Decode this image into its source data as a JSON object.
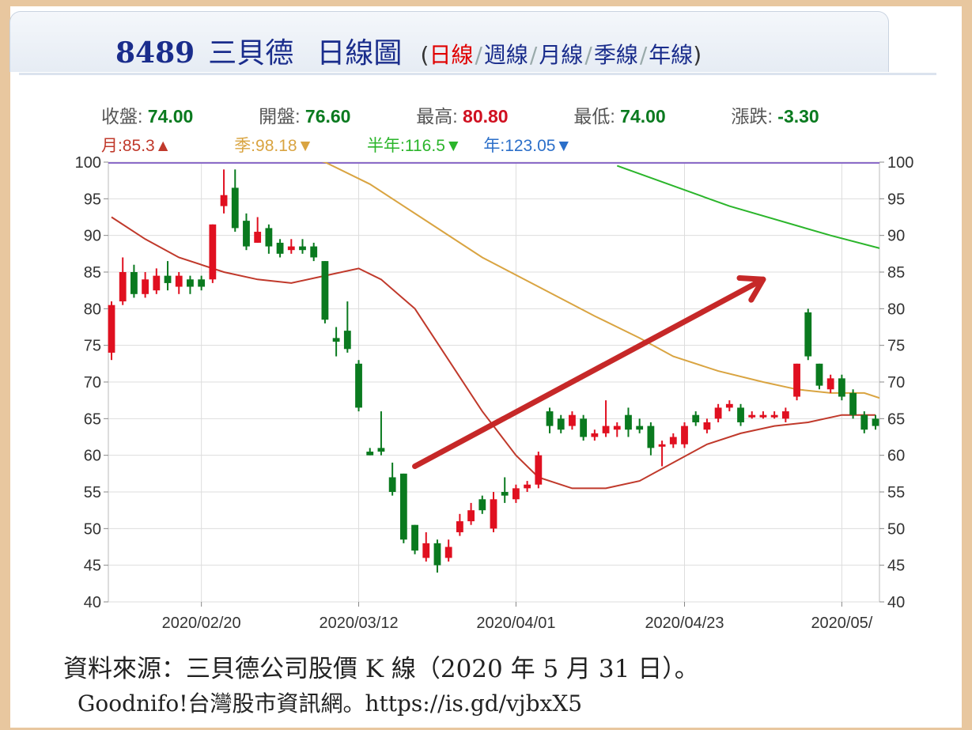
{
  "header": {
    "code": "8489",
    "name": "三貝德",
    "kind": "日線圖",
    "open_paren": "(",
    "close_paren": ")",
    "periods": [
      "日線",
      "週線",
      "月線",
      "季線",
      "年線"
    ]
  },
  "stats": {
    "close_label": "收盤:",
    "close": "74.00",
    "open_label": "開盤:",
    "open": "76.60",
    "high_label": "最高:",
    "high": "80.80",
    "low_label": "最低:",
    "low": "74.00",
    "change_label": "漲跌:",
    "change": "-3.30"
  },
  "moving_averages": {
    "month": "月:85.3▲",
    "quarter": "季:98.18▼",
    "half_year": "半年:116.5▼",
    "year": "年:123.05▼"
  },
  "colors": {
    "up": "#e01020",
    "down": "#0a7a1f",
    "month_ma": "#c0392b",
    "quarter_ma": "#d9a441",
    "half_year_ma": "#2bb52b",
    "year_ma": "#2b6fc9",
    "arrow": "#c62828",
    "grid": "#dddddd"
  },
  "chart_data": {
    "type": "candlestick",
    "ylim": [
      40,
      100
    ],
    "y_ticks": [
      "100",
      "95",
      "90",
      "85",
      "80",
      "75",
      "70",
      "65",
      "60",
      "55",
      "50",
      "45",
      "40"
    ],
    "x_ticks": [
      "2020/02/20",
      "2020/03/12",
      "2020/04/01",
      "2020/04/23",
      "2020/05/"
    ],
    "candles": [
      {
        "open": 74.0,
        "close": 80.5,
        "high": 81.0,
        "low": 73.0
      },
      {
        "open": 81.0,
        "close": 85.0,
        "high": 87.0,
        "low": 80.5
      },
      {
        "open": 85.0,
        "close": 82.0,
        "high": 86.0,
        "low": 81.5
      },
      {
        "open": 82.0,
        "close": 84.0,
        "high": 85.0,
        "low": 81.5
      },
      {
        "open": 82.5,
        "close": 84.5,
        "high": 85.5,
        "low": 82.0
      },
      {
        "open": 84.5,
        "close": 83.5,
        "high": 86.5,
        "low": 82.5
      },
      {
        "open": 83.0,
        "close": 84.5,
        "high": 85.0,
        "low": 82.0
      },
      {
        "open": 84.0,
        "close": 83.0,
        "high": 84.5,
        "low": 82.0
      },
      {
        "open": 84.0,
        "close": 83.0,
        "high": 84.5,
        "low": 82.5
      },
      {
        "open": 84.0,
        "close": 91.5,
        "high": 91.5,
        "low": 83.5
      },
      {
        "open": 94.0,
        "close": 95.5,
        "high": 99.0,
        "low": 93.0
      },
      {
        "open": 96.5,
        "close": 91.0,
        "high": 99.0,
        "low": 90.5
      },
      {
        "open": 92.0,
        "close": 88.5,
        "high": 93.0,
        "low": 88.0
      },
      {
        "open": 89.0,
        "close": 90.5,
        "high": 92.5,
        "low": 89.0
      },
      {
        "open": 91.0,
        "close": 88.5,
        "high": 91.5,
        "low": 87.5
      },
      {
        "open": 89.0,
        "close": 87.5,
        "high": 89.5,
        "low": 87.0
      },
      {
        "open": 88.0,
        "close": 88.5,
        "high": 89.5,
        "low": 87.5
      },
      {
        "open": 88.5,
        "close": 88.0,
        "high": 89.5,
        "low": 87.5
      },
      {
        "open": 88.5,
        "close": 87.0,
        "high": 89.0,
        "low": 86.5
      },
      {
        "open": 86.5,
        "close": 78.5,
        "high": 86.5,
        "low": 78.0
      },
      {
        "open": 76.0,
        "close": 75.5,
        "high": 77.5,
        "low": 73.5
      },
      {
        "open": 77.0,
        "close": 74.5,
        "high": 81.0,
        "low": 74.0
      },
      {
        "open": 72.5,
        "close": 66.5,
        "high": 73.0,
        "low": 66.0
      },
      {
        "open": 60.5,
        "close": 60.0,
        "high": 61.0,
        "low": 60.0
      },
      {
        "open": 61.0,
        "close": 60.5,
        "high": 66.0,
        "low": 60.0
      },
      {
        "open": 57.0,
        "close": 55.0,
        "high": 59.0,
        "low": 54.5
      },
      {
        "open": 57.5,
        "close": 48.5,
        "high": 57.5,
        "low": 48.0
      },
      {
        "open": 50.5,
        "close": 47.0,
        "high": 50.5,
        "low": 46.5
      },
      {
        "open": 46.0,
        "close": 48.0,
        "high": 49.5,
        "low": 45.5
      },
      {
        "open": 48.0,
        "close": 45.0,
        "high": 48.5,
        "low": 44.0
      },
      {
        "open": 46.0,
        "close": 47.5,
        "high": 48.5,
        "low": 45.5
      },
      {
        "open": 49.5,
        "close": 51.0,
        "high": 52.0,
        "low": 49.0
      },
      {
        "open": 51.0,
        "close": 52.5,
        "high": 53.5,
        "low": 50.5
      },
      {
        "open": 54.0,
        "close": 52.5,
        "high": 54.5,
        "low": 52.0
      },
      {
        "open": 50.0,
        "close": 54.0,
        "high": 55.0,
        "low": 49.5
      },
      {
        "open": 55.0,
        "close": 54.5,
        "high": 57.0,
        "low": 53.5
      },
      {
        "open": 54.0,
        "close": 55.5,
        "high": 56.0,
        "low": 53.5
      },
      {
        "open": 55.5,
        "close": 56.0,
        "high": 56.5,
        "low": 55.0
      },
      {
        "open": 56.0,
        "close": 60.0,
        "high": 60.5,
        "low": 55.5
      },
      {
        "open": 66.0,
        "close": 64.0,
        "high": 66.5,
        "low": 63.0
      },
      {
        "open": 65.0,
        "close": 63.5,
        "high": 65.5,
        "low": 63.0
      },
      {
        "open": 64.0,
        "close": 65.5,
        "high": 66.0,
        "low": 63.5
      },
      {
        "open": 65.0,
        "close": 62.5,
        "high": 65.5,
        "low": 62.0
      },
      {
        "open": 62.5,
        "close": 63.0,
        "high": 63.5,
        "low": 62.0
      },
      {
        "open": 63.0,
        "close": 64.0,
        "high": 67.5,
        "low": 62.5
      },
      {
        "open": 63.5,
        "close": 64.0,
        "high": 64.5,
        "low": 62.5
      },
      {
        "open": 65.5,
        "close": 63.5,
        "high": 66.5,
        "low": 62.5
      },
      {
        "open": 64.0,
        "close": 63.5,
        "high": 65.0,
        "low": 63.0
      },
      {
        "open": 64.0,
        "close": 61.0,
        "high": 64.5,
        "low": 60.0
      },
      {
        "open": 61.5,
        "close": 61.5,
        "high": 62.0,
        "low": 58.5
      },
      {
        "open": 61.5,
        "close": 62.5,
        "high": 63.0,
        "low": 61.0
      },
      {
        "open": 61.5,
        "close": 64.0,
        "high": 64.5,
        "low": 61.0
      },
      {
        "open": 65.5,
        "close": 64.5,
        "high": 66.0,
        "low": 64.0
      },
      {
        "open": 63.5,
        "close": 64.5,
        "high": 65.0,
        "low": 63.0
      },
      {
        "open": 65.0,
        "close": 66.5,
        "high": 67.0,
        "low": 64.5
      },
      {
        "open": 66.5,
        "close": 67.0,
        "high": 67.5,
        "low": 66.0
      },
      {
        "open": 66.5,
        "close": 64.5,
        "high": 67.0,
        "low": 64.0
      },
      {
        "open": 65.5,
        "close": 65.5,
        "high": 66.0,
        "low": 65.0
      },
      {
        "open": 65.5,
        "close": 65.5,
        "high": 66.0,
        "low": 65.0
      },
      {
        "open": 65.5,
        "close": 65.5,
        "high": 66.0,
        "low": 65.0
      },
      {
        "open": 65.0,
        "close": 66.0,
        "high": 66.5,
        "low": 64.5
      },
      {
        "open": 68.0,
        "close": 72.5,
        "high": 72.5,
        "low": 67.5
      },
      {
        "open": 79.5,
        "close": 73.5,
        "high": 80.0,
        "low": 73.0
      },
      {
        "open": 72.5,
        "close": 69.5,
        "high": 72.5,
        "low": 69.0
      },
      {
        "open": 69.0,
        "close": 70.5,
        "high": 71.0,
        "low": 68.5
      },
      {
        "open": 70.5,
        "close": 68.0,
        "high": 71.0,
        "low": 67.5
      },
      {
        "open": 68.5,
        "close": 65.5,
        "high": 69.0,
        "low": 65.0
      },
      {
        "open": 65.5,
        "close": 63.5,
        "high": 66.0,
        "low": 63.0
      },
      {
        "open": 65.0,
        "close": 64.0,
        "high": 65.5,
        "low": 63.5
      }
    ],
    "series": [
      {
        "name": "月",
        "points": [
          [
            0,
            92.5
          ],
          [
            3,
            89.5
          ],
          [
            6,
            87
          ],
          [
            10,
            85
          ],
          [
            13,
            84
          ],
          [
            16,
            83.5
          ],
          [
            19,
            84.5
          ],
          [
            22,
            85.5
          ],
          [
            24,
            84
          ],
          [
            27,
            80
          ],
          [
            30,
            73
          ],
          [
            33,
            66
          ],
          [
            36,
            60
          ],
          [
            38,
            57
          ],
          [
            41,
            55.5
          ],
          [
            44,
            55.5
          ],
          [
            47,
            56.5
          ],
          [
            50,
            59
          ],
          [
            53,
            61.5
          ],
          [
            56,
            63
          ],
          [
            59,
            64
          ],
          [
            62,
            64.5
          ],
          [
            65,
            65.5
          ],
          [
            68,
            65.5
          ]
        ]
      },
      {
        "name": "季",
        "points": [
          [
            11,
            103
          ],
          [
            19,
            100
          ],
          [
            23,
            97
          ],
          [
            28,
            92
          ],
          [
            33,
            87
          ],
          [
            38,
            83
          ],
          [
            43,
            79
          ],
          [
            47,
            76
          ],
          [
            50,
            73.5
          ],
          [
            54,
            71.5
          ],
          [
            58,
            70
          ],
          [
            61,
            69
          ],
          [
            64,
            68.5
          ],
          [
            67,
            68.5
          ],
          [
            69,
            67.5
          ]
        ]
      },
      {
        "name": "半年",
        "points": [
          [
            45,
            99.5
          ],
          [
            55,
            94
          ],
          [
            64,
            90
          ],
          [
            69,
            88
          ]
        ]
      },
      {
        "name": "年",
        "points": []
      }
    ],
    "annotation": {
      "type": "arrow",
      "from": [
        27,
        58.5
      ],
      "to": [
        58,
        84
      ]
    }
  },
  "caption": {
    "line1": "資料來源：三貝德公司股價 K 線（2020 年 5 月 31 日）。",
    "line2": "Goodnifo!台灣股市資訊網。https://is.gd/vjbxX5"
  }
}
